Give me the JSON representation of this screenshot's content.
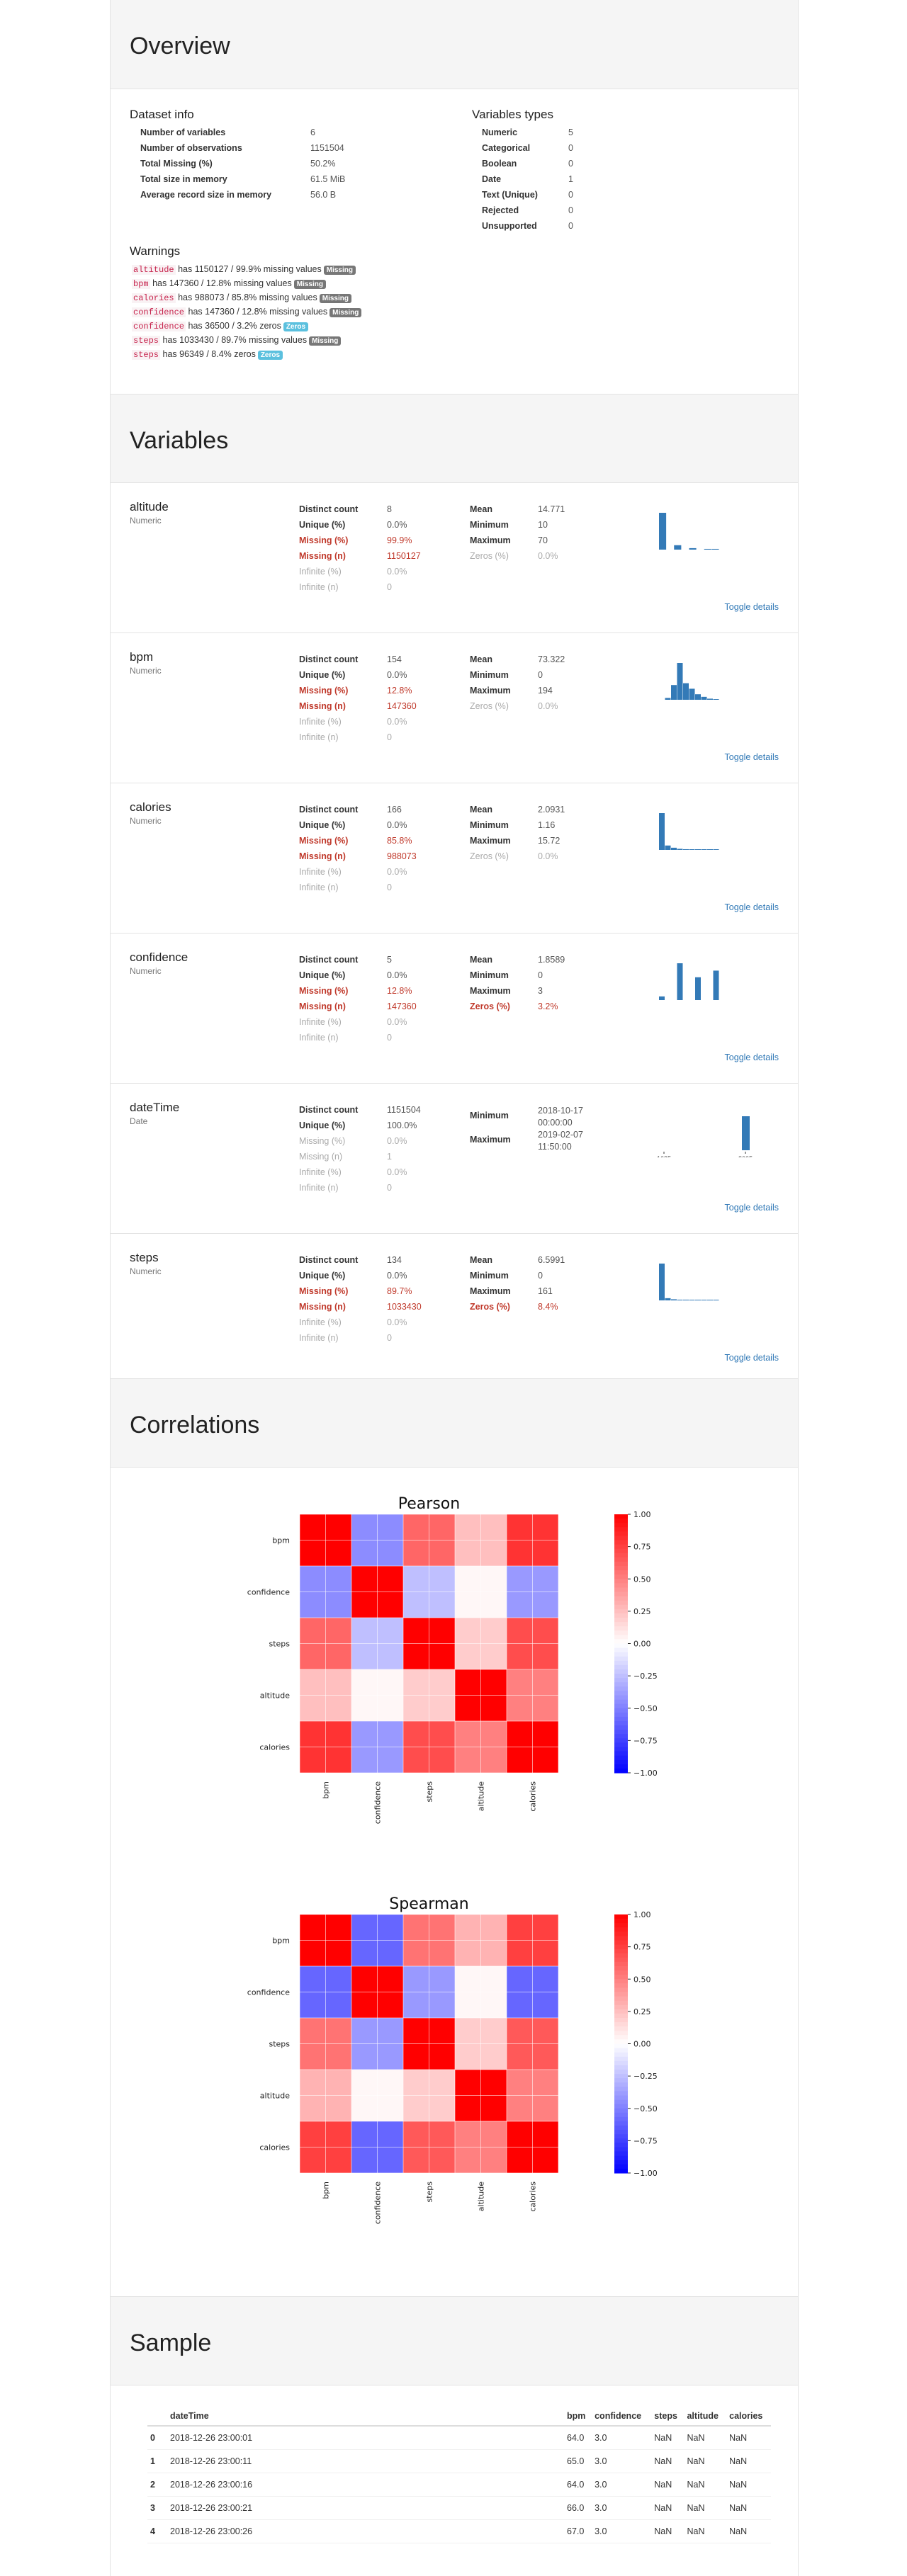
{
  "overview": {
    "title": "Overview",
    "dataset_info": {
      "heading": "Dataset info",
      "rows": [
        {
          "label": "Number of variables",
          "value": "6"
        },
        {
          "label": "Number of observations",
          "value": "1151504"
        },
        {
          "label": "Total Missing (%)",
          "value": "50.2%"
        },
        {
          "label": "Total size in memory",
          "value": "61.5 MiB"
        },
        {
          "label": "Average record size in memory",
          "value": "56.0 B"
        }
      ]
    },
    "variable_types": {
      "heading": "Variables types",
      "rows": [
        {
          "label": "Numeric",
          "value": "5"
        },
        {
          "label": "Categorical",
          "value": "0"
        },
        {
          "label": "Boolean",
          "value": "0"
        },
        {
          "label": "Date",
          "value": "1"
        },
        {
          "label": "Text (Unique)",
          "value": "0"
        },
        {
          "label": "Rejected",
          "value": "0"
        },
        {
          "label": "Unsupported",
          "value": "0"
        }
      ]
    },
    "warnings": {
      "heading": "Warnings",
      "items": [
        {
          "var": "altitude",
          "text": " has 1150127 / 99.9% missing values",
          "badge": "Missing",
          "kind": "miss"
        },
        {
          "var": "bpm",
          "text": " has 147360 / 12.8% missing values",
          "badge": "Missing",
          "kind": "miss"
        },
        {
          "var": "calories",
          "text": " has 988073 / 85.8% missing values",
          "badge": "Missing",
          "kind": "miss"
        },
        {
          "var": "confidence",
          "text": " has 147360 / 12.8% missing values",
          "badge": "Missing",
          "kind": "miss"
        },
        {
          "var": "confidence",
          "text": " has 36500 / 3.2% zeros",
          "badge": "Zeros",
          "kind": "zero"
        },
        {
          "var": "steps",
          "text": " has 1033430 / 89.7% missing values",
          "badge": "Missing",
          "kind": "miss"
        },
        {
          "var": "steps",
          "text": " has 96349 / 8.4% zeros",
          "badge": "Zeros",
          "kind": "zero"
        }
      ]
    }
  },
  "variables": {
    "title": "Variables",
    "toggle_label": "Toggle details",
    "items": [
      {
        "name": "altitude",
        "type": "Numeric",
        "left": [
          {
            "k": "Distinct count",
            "v": "8",
            "s": ""
          },
          {
            "k": "Unique (%)",
            "v": "0.0%",
            "s": ""
          },
          {
            "k": "Missing (%)",
            "v": "99.9%",
            "s": "red"
          },
          {
            "k": "Missing (n)",
            "v": "1150127",
            "s": "red"
          },
          {
            "k": "Infinite (%)",
            "v": "0.0%",
            "s": "grey"
          },
          {
            "k": "Infinite (n)",
            "v": "0",
            "s": "grey"
          }
        ],
        "right": [
          {
            "k": "Mean",
            "v": "14.771",
            "s": ""
          },
          {
            "k": "Minimum",
            "v": "10",
            "s": ""
          },
          {
            "k": "Maximum",
            "v": "70",
            "s": ""
          },
          {
            "k": "Zeros (%)",
            "v": "0.0%",
            "s": "grey"
          }
        ],
        "hist": [
          1.0,
          0.0,
          0.12,
          0.0,
          0.04,
          0.0,
          0.02,
          0.02
        ]
      },
      {
        "name": "bpm",
        "type": "Numeric",
        "left": [
          {
            "k": "Distinct count",
            "v": "154",
            "s": ""
          },
          {
            "k": "Unique (%)",
            "v": "0.0%",
            "s": ""
          },
          {
            "k": "Missing (%)",
            "v": "12.8%",
            "s": "red"
          },
          {
            "k": "Missing (n)",
            "v": "147360",
            "s": "red"
          },
          {
            "k": "Infinite (%)",
            "v": "0.0%",
            "s": "grey"
          },
          {
            "k": "Infinite (n)",
            "v": "0",
            "s": "grey"
          }
        ],
        "right": [
          {
            "k": "Mean",
            "v": "73.322",
            "s": ""
          },
          {
            "k": "Minimum",
            "v": "0",
            "s": ""
          },
          {
            "k": "Maximum",
            "v": "194",
            "s": ""
          },
          {
            "k": "Zeros (%)",
            "v": "0.0%",
            "s": "grey"
          }
        ],
        "hist": [
          0.0,
          0.05,
          0.4,
          1.0,
          0.45,
          0.3,
          0.15,
          0.08,
          0.03,
          0.01
        ]
      },
      {
        "name": "calories",
        "type": "Numeric",
        "left": [
          {
            "k": "Distinct count",
            "v": "166",
            "s": ""
          },
          {
            "k": "Unique (%)",
            "v": "0.0%",
            "s": ""
          },
          {
            "k": "Missing (%)",
            "v": "85.8%",
            "s": "red"
          },
          {
            "k": "Missing (n)",
            "v": "988073",
            "s": "red"
          },
          {
            "k": "Infinite (%)",
            "v": "0.0%",
            "s": "grey"
          },
          {
            "k": "Infinite (n)",
            "v": "0",
            "s": "grey"
          }
        ],
        "right": [
          {
            "k": "Mean",
            "v": "2.0931",
            "s": ""
          },
          {
            "k": "Minimum",
            "v": "1.16",
            "s": ""
          },
          {
            "k": "Maximum",
            "v": "15.72",
            "s": ""
          },
          {
            "k": "Zeros (%)",
            "v": "0.0%",
            "s": "grey"
          }
        ],
        "hist": [
          1.0,
          0.12,
          0.06,
          0.03,
          0.02,
          0.01,
          0.01,
          0.01,
          0.01,
          0.01
        ]
      },
      {
        "name": "confidence",
        "type": "Numeric",
        "left": [
          {
            "k": "Distinct count",
            "v": "5",
            "s": ""
          },
          {
            "k": "Unique (%)",
            "v": "0.0%",
            "s": ""
          },
          {
            "k": "Missing (%)",
            "v": "12.8%",
            "s": "red"
          },
          {
            "k": "Missing (n)",
            "v": "147360",
            "s": "red"
          },
          {
            "k": "Infinite (%)",
            "v": "0.0%",
            "s": "grey"
          },
          {
            "k": "Infinite (n)",
            "v": "0",
            "s": "grey"
          }
        ],
        "right": [
          {
            "k": "Mean",
            "v": "1.8589",
            "s": ""
          },
          {
            "k": "Minimum",
            "v": "0",
            "s": ""
          },
          {
            "k": "Maximum",
            "v": "3",
            "s": ""
          },
          {
            "k": "Zeros (%)",
            "v": "3.2%",
            "s": "red"
          }
        ],
        "hist": [
          0.1,
          0.0,
          0.0,
          1.0,
          0.0,
          0.0,
          0.62,
          0.0,
          0.0,
          0.8
        ]
      },
      {
        "name": "dateTime",
        "type": "Date",
        "left": [
          {
            "k": "Distinct count",
            "v": "1151504",
            "s": ""
          },
          {
            "k": "Unique (%)",
            "v": "100.0%",
            "s": ""
          },
          {
            "k": "Missing (%)",
            "v": "0.0%",
            "s": "grey"
          },
          {
            "k": "Missing (n)",
            "v": "1",
            "s": "grey"
          },
          {
            "k": "Infinite (%)",
            "v": "0.0%",
            "s": "grey"
          },
          {
            "k": "Infinite (n)",
            "v": "0",
            "s": "grey"
          }
        ],
        "right": [
          {
            "k": "Minimum",
            "v": "2018-10-17 00:00:00",
            "s": ""
          },
          {
            "k": "Maximum",
            "v": "2019-02-07 11:50:00",
            "s": ""
          }
        ],
        "hist_ticks": [
          "1685",
          "2005"
        ],
        "hist": []
      },
      {
        "name": "steps",
        "type": "Numeric",
        "left": [
          {
            "k": "Distinct count",
            "v": "134",
            "s": ""
          },
          {
            "k": "Unique (%)",
            "v": "0.0%",
            "s": ""
          },
          {
            "k": "Missing (%)",
            "v": "89.7%",
            "s": "red"
          },
          {
            "k": "Missing (n)",
            "v": "1033430",
            "s": "red"
          },
          {
            "k": "Infinite (%)",
            "v": "0.0%",
            "s": "grey"
          },
          {
            "k": "Infinite (n)",
            "v": "0",
            "s": "grey"
          }
        ],
        "right": [
          {
            "k": "Mean",
            "v": "6.5991",
            "s": ""
          },
          {
            "k": "Minimum",
            "v": "0",
            "s": ""
          },
          {
            "k": "Maximum",
            "v": "161",
            "s": ""
          },
          {
            "k": "Zeros (%)",
            "v": "8.4%",
            "s": "red"
          }
        ],
        "hist": [
          1.0,
          0.06,
          0.03,
          0.02,
          0.02,
          0.01,
          0.01,
          0.01,
          0.01,
          0.01
        ]
      }
    ]
  },
  "correlations": {
    "title": "Correlations",
    "colorbar_ticks": [
      "1.00",
      "0.75",
      "0.50",
      "0.25",
      "0.00",
      "−0.25",
      "−0.50",
      "−0.75",
      "−1.00"
    ],
    "colors": {
      "positive": "#ff0000",
      "negative": "#0000ff",
      "neutral": "#ffffff"
    }
  },
  "chart_data": [
    {
      "type": "heatmap",
      "title": "Pearson",
      "rows": [
        "bpm",
        "confidence",
        "steps",
        "altitude",
        "calories"
      ],
      "cols": [
        "bpm",
        "confidence",
        "steps",
        "altitude",
        "calories"
      ],
      "values": [
        [
          1.0,
          -0.45,
          0.6,
          0.25,
          0.8
        ],
        [
          -0.45,
          1.0,
          -0.25,
          0.03,
          -0.4
        ],
        [
          0.6,
          -0.25,
          1.0,
          0.2,
          0.7
        ],
        [
          0.25,
          0.03,
          0.2,
          1.0,
          0.5
        ],
        [
          0.8,
          -0.4,
          0.7,
          0.5,
          1.0
        ]
      ],
      "zlim": [
        -1,
        1
      ]
    },
    {
      "type": "heatmap",
      "title": "Spearman",
      "rows": [
        "bpm",
        "confidence",
        "steps",
        "altitude",
        "calories"
      ],
      "cols": [
        "bpm",
        "confidence",
        "steps",
        "altitude",
        "calories"
      ],
      "values": [
        [
          1.0,
          -0.6,
          0.55,
          0.3,
          0.75
        ],
        [
          -0.6,
          1.0,
          -0.4,
          0.03,
          -0.6
        ],
        [
          0.55,
          -0.4,
          1.0,
          0.2,
          0.65
        ],
        [
          0.3,
          0.03,
          0.2,
          1.0,
          0.5
        ],
        [
          0.75,
          -0.6,
          0.65,
          0.5,
          1.0
        ]
      ],
      "zlim": [
        -1,
        1
      ]
    }
  ],
  "sample": {
    "title": "Sample",
    "columns": [
      "",
      "dateTime",
      "bpm",
      "confidence",
      "steps",
      "altitude",
      "calories"
    ],
    "rows": [
      [
        "0",
        "2018-12-26 23:00:01",
        "64.0",
        "3.0",
        "NaN",
        "NaN",
        "NaN"
      ],
      [
        "1",
        "2018-12-26 23:00:11",
        "65.0",
        "3.0",
        "NaN",
        "NaN",
        "NaN"
      ],
      [
        "2",
        "2018-12-26 23:00:16",
        "64.0",
        "3.0",
        "NaN",
        "NaN",
        "NaN"
      ],
      [
        "3",
        "2018-12-26 23:00:21",
        "66.0",
        "3.0",
        "NaN",
        "NaN",
        "NaN"
      ],
      [
        "4",
        "2018-12-26 23:00:26",
        "67.0",
        "3.0",
        "NaN",
        "NaN",
        "NaN"
      ]
    ]
  }
}
